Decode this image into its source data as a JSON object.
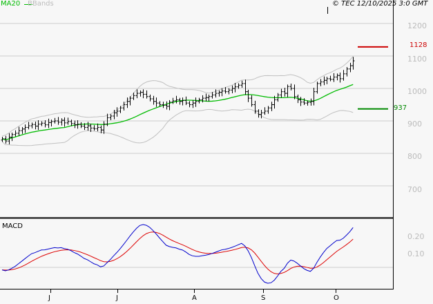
{
  "header": {
    "legend_ma": "MA20",
    "legend_bb": "BBands",
    "copyright": "© TEC 12/10/2025 3:0 GMT"
  },
  "colors": {
    "ma": "#00bb00",
    "bbands": "#c0c0c0",
    "bars": "#000000",
    "macd": "#0000cc",
    "signal": "#dd0000",
    "target_high": "#cc0000",
    "target_low": "#008800"
  },
  "chart_data": [
    {
      "type": "ohlc",
      "series": [
        {
          "name": "MA20",
          "kind": "moving-average"
        },
        {
          "name": "BBands",
          "kind": "bollinger"
        }
      ],
      "closes": [
        845,
        838,
        850,
        858,
        862,
        870,
        875,
        880,
        885,
        889,
        884,
        890,
        893,
        888,
        895,
        898,
        900,
        896,
        902,
        894,
        898,
        892,
        888,
        890,
        884,
        880,
        885,
        878,
        876,
        880,
        872,
        890,
        910,
        915,
        925,
        930,
        940,
        950,
        960,
        970,
        978,
        985,
        988,
        982,
        975,
        968,
        960,
        955,
        950,
        948,
        945,
        958,
        962,
        965,
        960,
        963,
        955,
        950,
        955,
        960,
        965,
        970,
        972,
        975,
        980,
        985,
        988,
        992,
        990,
        995,
        1000,
        1005,
        1010,
        1015,
        990,
        970,
        950,
        930,
        920,
        925,
        930,
        940,
        950,
        965,
        980,
        990,
        985,
        1006,
        1000,
        975,
        965,
        958,
        955,
        957,
        960,
        990,
        1015,
        1020,
        1025,
        1030,
        1028,
        1035,
        1040,
        1030,
        1045,
        1060,
        1070,
        1085
      ],
      "y_ticks": [
        "1200",
        "1100",
        "1000",
        "900",
        "800",
        "700"
      ],
      "ylim": [
        640,
        1270
      ],
      "x_ticks": [
        "J",
        "J",
        "A",
        "S",
        "O"
      ],
      "levels": [
        {
          "label": "1128",
          "value": 1128,
          "color": "#cc0000"
        },
        {
          "label": "937",
          "value": 937,
          "color": "#008800"
        }
      ]
    },
    {
      "type": "line",
      "title": "MACD",
      "y_ticks": [
        "0.20",
        "0.10"
      ]
    }
  ]
}
